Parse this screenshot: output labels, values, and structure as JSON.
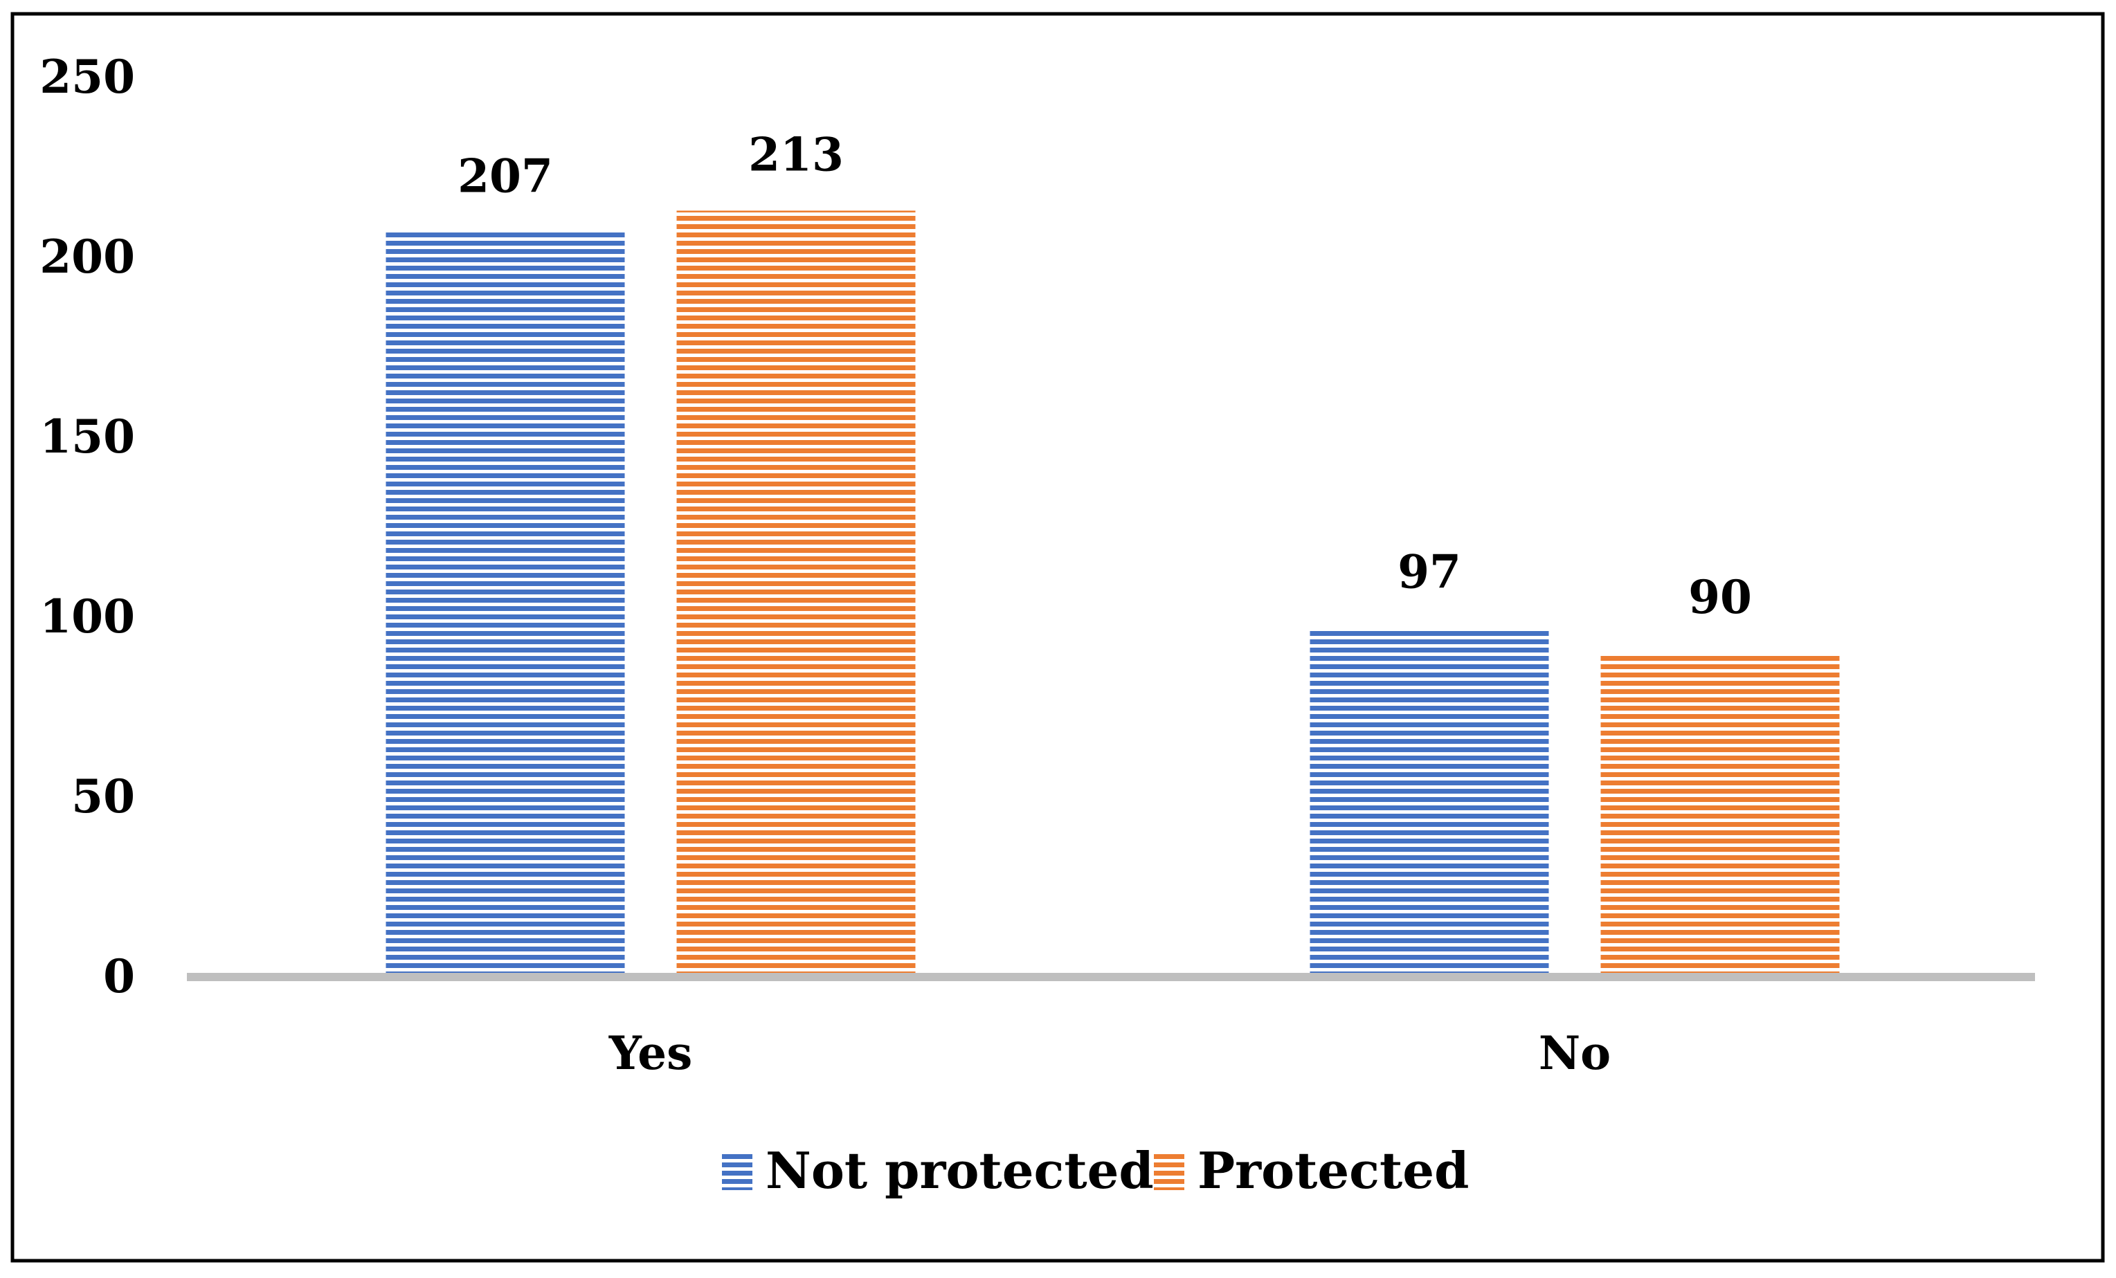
{
  "chart_data": {
    "type": "bar",
    "title": "",
    "xlabel": "",
    "ylabel": "",
    "categories": [
      "Yes",
      "No"
    ],
    "series": [
      {
        "name": "Not protected",
        "values": [
          207,
          97
        ],
        "color": "#4472C4"
      },
      {
        "name": "Protected",
        "values": [
          213,
          90
        ],
        "color": "#ED7D31"
      }
    ],
    "data_labels": [
      [
        "207",
        "213"
      ],
      [
        "97",
        "90"
      ]
    ],
    "ylim": [
      0,
      250
    ],
    "yticks": [
      0,
      50,
      100,
      150,
      200,
      250
    ],
    "ytick_labels": [
      "0",
      "50",
      "100",
      "150",
      "200",
      "250"
    ],
    "grid": false,
    "bar_fill": "horizontal-stripes",
    "axis_color": "#BFBFBF",
    "legend_position": "bottom"
  }
}
